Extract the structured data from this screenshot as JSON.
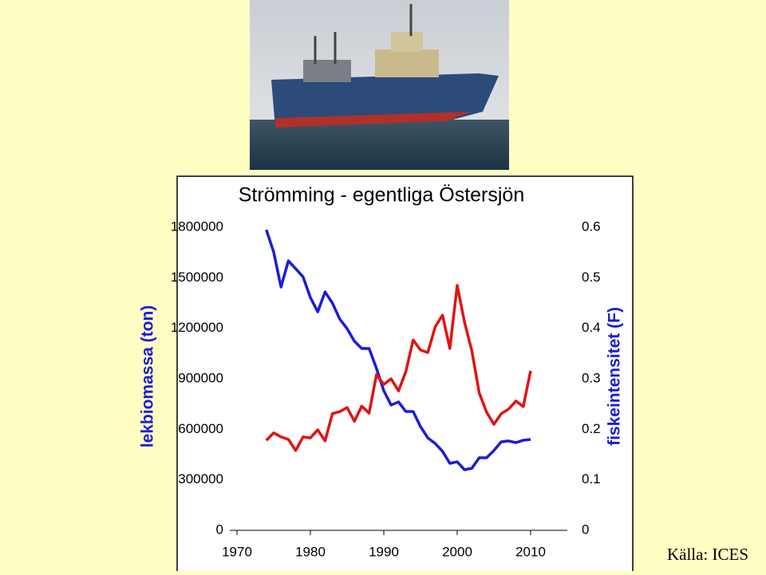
{
  "chart_data": {
    "type": "line",
    "title": "Strömming - egentliga Östersjön",
    "ylabel": "lekbiomassa (ton)",
    "y2label": "fiskeintensitet (F)",
    "source": "Källa: ICES",
    "x": [
      1974,
      1975,
      1976,
      1977,
      1978,
      1979,
      1980,
      1981,
      1982,
      1983,
      1984,
      1985,
      1986,
      1987,
      1988,
      1989,
      1990,
      1991,
      1992,
      1993,
      1994,
      1995,
      1996,
      1997,
      1998,
      1999,
      2000,
      2001,
      2002,
      2003,
      2004,
      2005,
      2006,
      2007,
      2008,
      2009,
      2010
    ],
    "xlim": [
      1969,
      2015
    ],
    "xticks": [
      1970,
      1980,
      1990,
      2000,
      2010
    ],
    "ylim": [
      0,
      1800000
    ],
    "yticks": [
      0,
      300000,
      600000,
      900000,
      1200000,
      1500000,
      1800000
    ],
    "y2lim": [
      0,
      0.6
    ],
    "y2ticks": [
      0,
      0.1,
      0.2,
      0.3,
      0.4,
      0.5,
      0.6
    ],
    "grid": false,
    "series": [
      {
        "color": "#1c1cd8",
        "axis": "y",
        "values": [
          1785000,
          1653000,
          1445000,
          1601000,
          1554000,
          1506000,
          1383000,
          1298000,
          1416000,
          1350000,
          1255000,
          1198000,
          1123000,
          1080000,
          1080000,
          962000,
          829000,
          744000,
          763000,
          706000,
          706000,
          616000,
          549000,
          516000,
          469000,
          398000,
          407000,
          360000,
          369000,
          431000,
          431000,
          474000,
          526000,
          531000,
          521000,
          535000,
          540000
        ]
      },
      {
        "color": "#e01414",
        "axis": "y2",
        "values": [
          0.178,
          0.193,
          0.185,
          0.18,
          0.158,
          0.185,
          0.183,
          0.199,
          0.177,
          0.231,
          0.235,
          0.243,
          0.216,
          0.246,
          0.232,
          0.308,
          0.289,
          0.3,
          0.276,
          0.314,
          0.377,
          0.357,
          0.352,
          0.403,
          0.426,
          0.36,
          0.485,
          0.412,
          0.355,
          0.272,
          0.234,
          0.21,
          0.231,
          0.24,
          0.256,
          0.245,
          0.316
        ]
      }
    ]
  }
}
